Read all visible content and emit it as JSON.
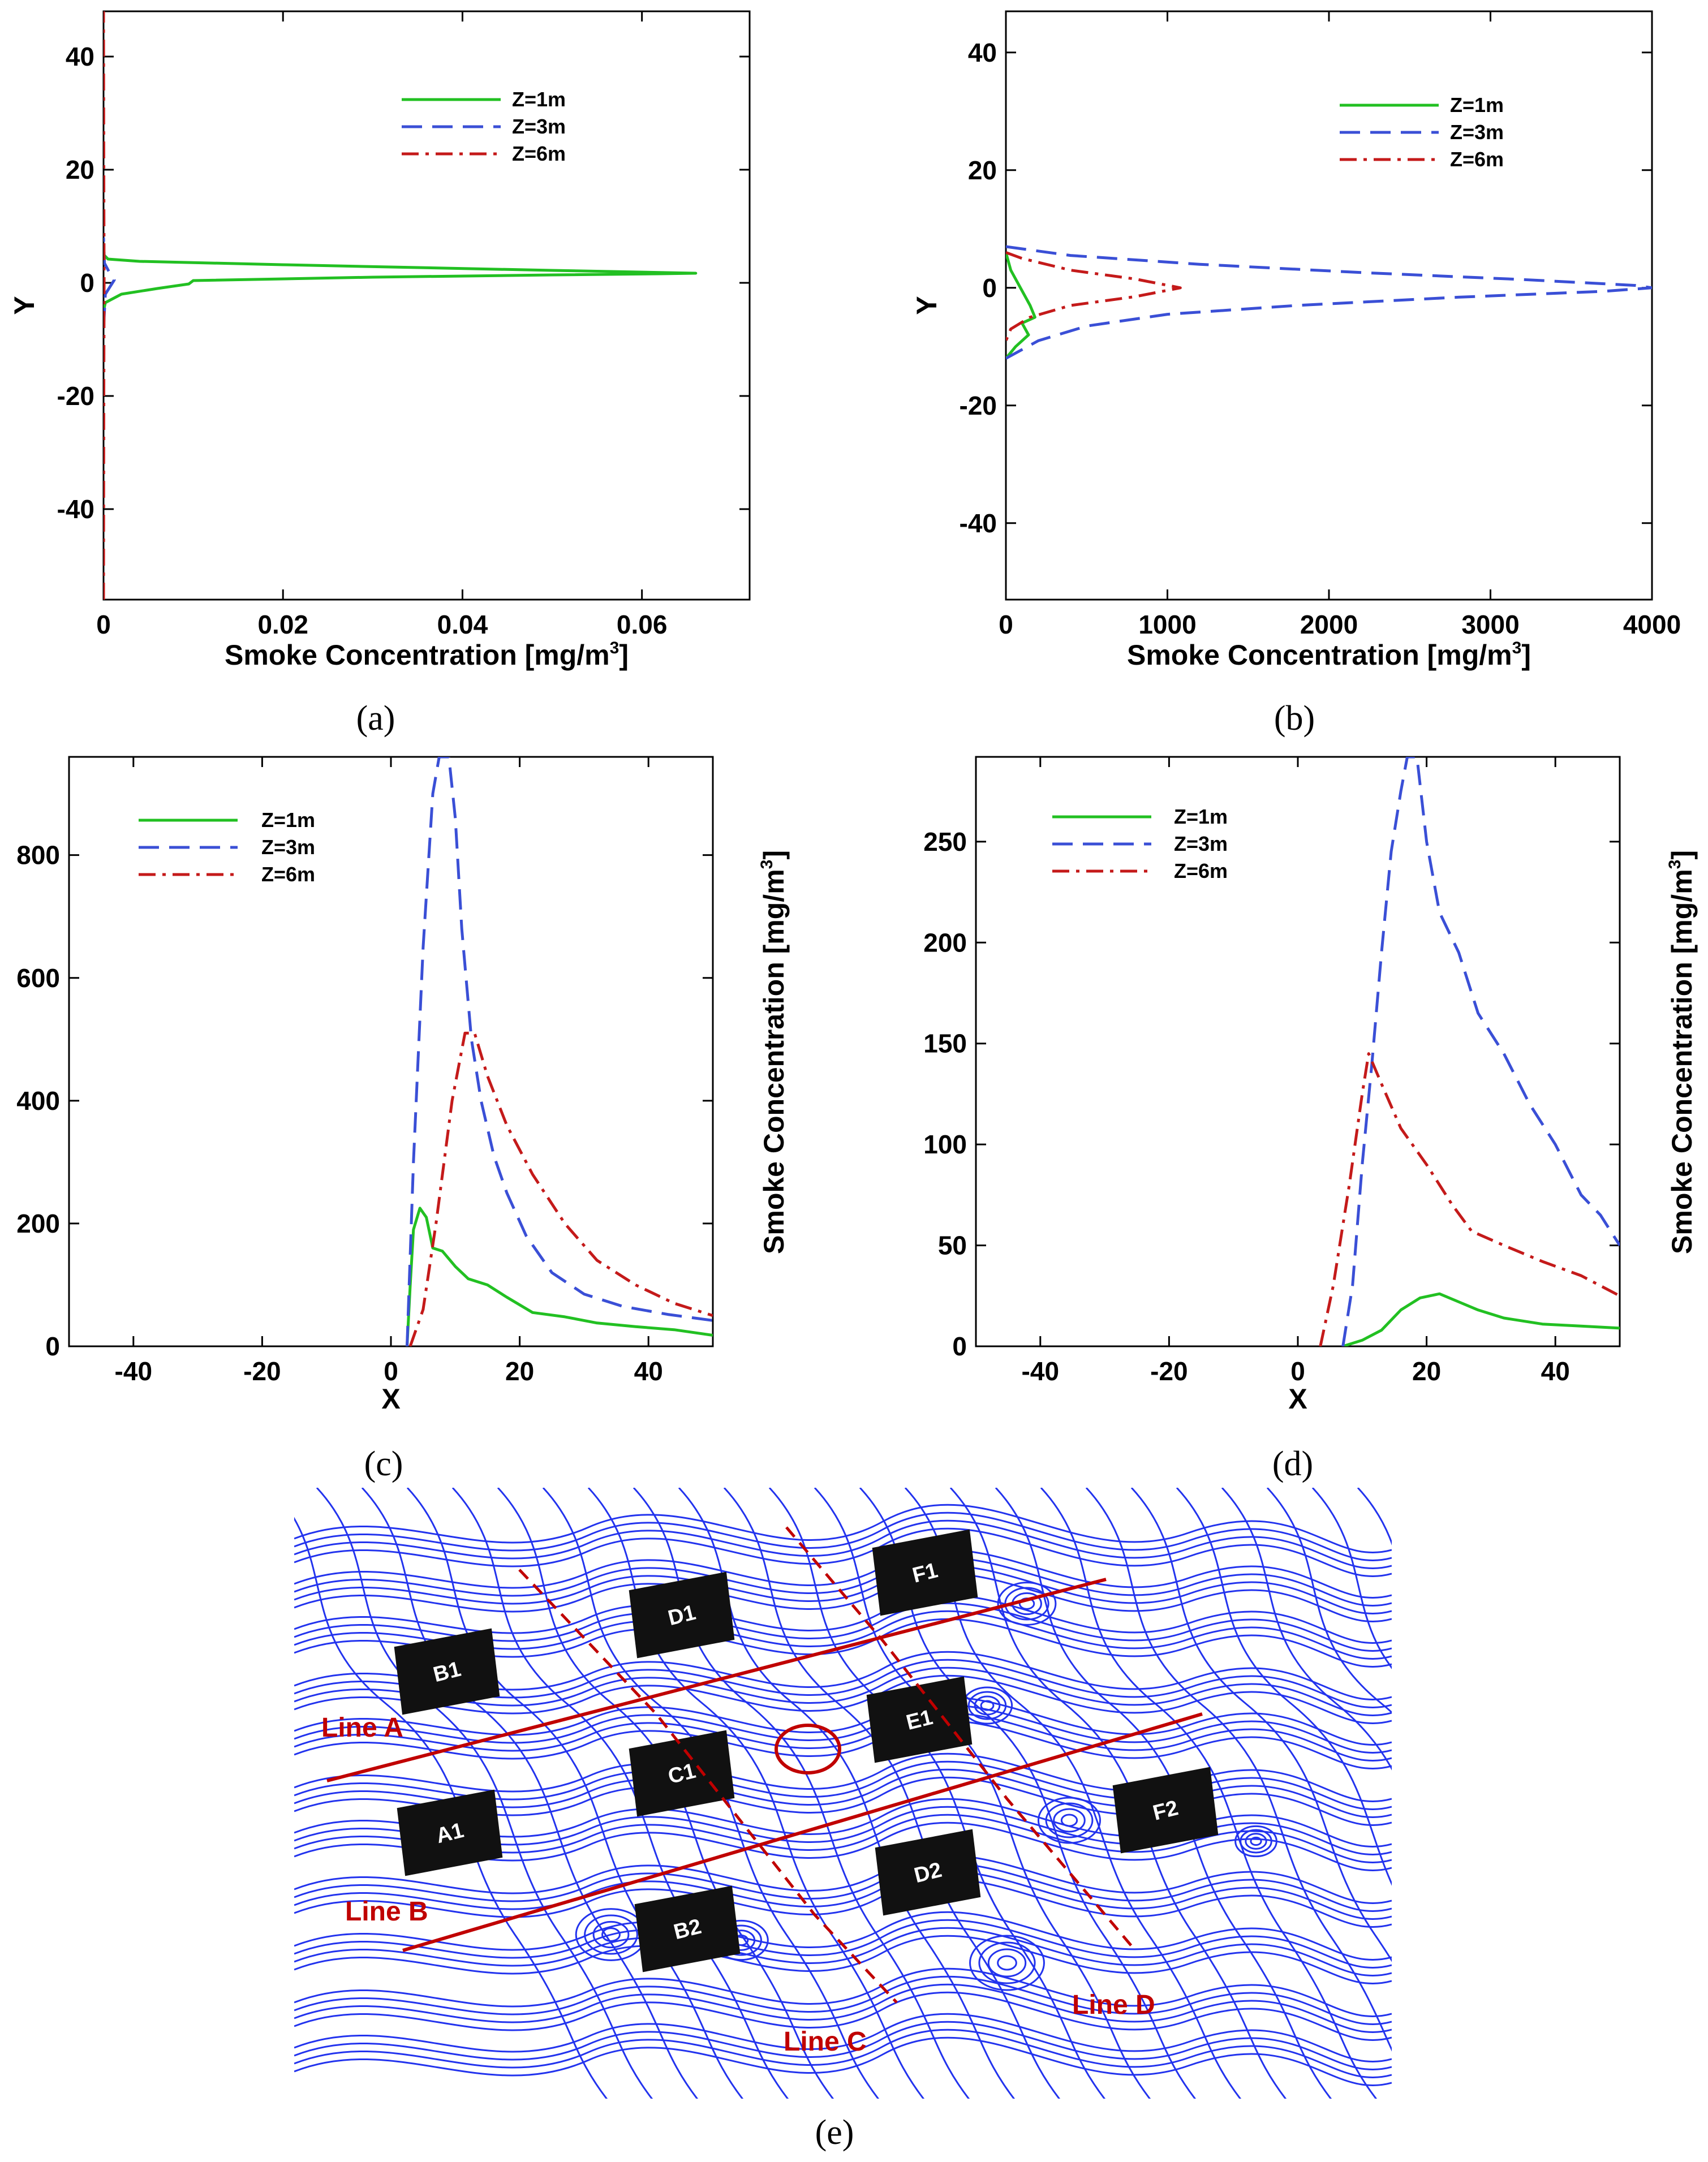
{
  "chart_data": [
    {
      "id": "a",
      "type": "line",
      "panel_label": "(a)",
      "xlabel": "Smoke Concentration [mg/m",
      "xlabel_sup": "3",
      "xlabel_end": "]",
      "ylabel": "Y",
      "xlim": [
        0,
        0.072
      ],
      "ylim": [
        -56,
        48
      ],
      "xticks": [
        0,
        0.02,
        0.04,
        0.06
      ],
      "xtick_labels": [
        "0",
        "0.02",
        "0.04",
        "0.06"
      ],
      "yticks": [
        -40,
        -20,
        0,
        20,
        40
      ],
      "ytick_labels": [
        "-40",
        "-20",
        "0",
        "20",
        "40"
      ],
      "legend": [
        "Z=1m",
        "Z=3m",
        "Z=6m"
      ],
      "series": [
        {
          "name": "Z=1m",
          "color": "#22c022",
          "dash": "solid",
          "points": [
            [
              0,
              -5
            ],
            [
              0.0002,
              -3.5
            ],
            [
              0.002,
              -2
            ],
            [
              0.006,
              -1
            ],
            [
              0.0095,
              -0.2
            ],
            [
              0.01,
              0.4
            ],
            [
              0.03,
              1.0
            ],
            [
              0.05,
              1.4
            ],
            [
              0.062,
              1.6
            ],
            [
              0.066,
              1.7
            ],
            [
              0.05,
              2.2
            ],
            [
              0.02,
              3.2
            ],
            [
              0.004,
              3.8
            ],
            [
              0.0005,
              4.2
            ],
            [
              0,
              5
            ]
          ]
        },
        {
          "name": "Z=3m",
          "color": "#3a4fd6",
          "dash": "dashed",
          "points": [
            [
              0,
              -8
            ],
            [
              0.0002,
              -2
            ],
            [
              0.0012,
              0.5
            ],
            [
              0.0006,
              2
            ],
            [
              0.0001,
              3.5
            ],
            [
              0,
              8
            ]
          ]
        },
        {
          "name": "Z=6m",
          "color": "#c41a1a",
          "dash": "dashdot",
          "points": [
            [
              0,
              -56
            ],
            [
              3e-05,
              -20
            ],
            [
              6e-05,
              0
            ],
            [
              3e-05,
              20
            ],
            [
              0,
              48
            ]
          ]
        }
      ]
    },
    {
      "id": "b",
      "type": "line",
      "panel_label": "(b)",
      "xlabel": "Smoke Concentration [mg/m",
      "xlabel_sup": "3",
      "xlabel_end": "]",
      "ylabel": "Y",
      "xlim": [
        0,
        4000
      ],
      "ylim": [
        -53,
        47
      ],
      "xticks": [
        0,
        1000,
        2000,
        3000,
        4000
      ],
      "xtick_labels": [
        "0",
        "1000",
        "2000",
        "3000",
        "4000"
      ],
      "yticks": [
        -40,
        -20,
        0,
        20,
        40
      ],
      "ytick_labels": [
        "-40",
        "-20",
        "0",
        "20",
        "40"
      ],
      "legend": [
        "Z=1m",
        "Z=3m",
        "Z=6m"
      ],
      "series": [
        {
          "name": "Z=1m",
          "color": "#22c022",
          "dash": "solid",
          "points": [
            [
              0,
              6
            ],
            [
              30,
              3
            ],
            [
              90,
              0
            ],
            [
              150,
              -3
            ],
            [
              180,
              -5
            ],
            [
              100,
              -6
            ],
            [
              140,
              -8
            ],
            [
              60,
              -10
            ],
            [
              0,
              -12
            ]
          ]
        },
        {
          "name": "Z=3m",
          "color": "#3a4fd6",
          "dash": "dashed",
          "points": [
            [
              0,
              7
            ],
            [
              400,
              5.5
            ],
            [
              1200,
              4
            ],
            [
              2200,
              2.6
            ],
            [
              3200,
              1.4
            ],
            [
              3900,
              0.4
            ],
            [
              4000,
              0
            ],
            [
              3700,
              -0.6
            ],
            [
              2800,
              -1.6
            ],
            [
              1800,
              -3
            ],
            [
              1000,
              -4.5
            ],
            [
              500,
              -6.5
            ],
            [
              200,
              -9
            ],
            [
              0,
              -12
            ]
          ]
        },
        {
          "name": "Z=6m",
          "color": "#c41a1a",
          "dash": "dashdot",
          "points": [
            [
              0,
              6
            ],
            [
              100,
              5
            ],
            [
              400,
              3
            ],
            [
              800,
              1.5
            ],
            [
              1080,
              0
            ],
            [
              800,
              -1.5
            ],
            [
              400,
              -3
            ],
            [
              150,
              -5
            ],
            [
              30,
              -7
            ],
            [
              0,
              -9
            ]
          ]
        }
      ]
    },
    {
      "id": "c",
      "type": "line",
      "panel_label": "(c)",
      "xlabel": "X",
      "ylabel": "Smoke Concentration [mg/m",
      "ylabel_sup": "3",
      "ylabel_end": "]",
      "xlim": [
        -50,
        50
      ],
      "ylim": [
        0,
        960
      ],
      "xticks": [
        -40,
        -20,
        0,
        20,
        40
      ],
      "xtick_labels": [
        "-40",
        "-20",
        "0",
        "20",
        "40"
      ],
      "yticks": [
        0,
        200,
        400,
        600,
        800
      ],
      "ytick_labels": [
        "0",
        "200",
        "400",
        "600",
        "800"
      ],
      "legend": [
        "Z=1m",
        "Z=3m",
        "Z=6m"
      ],
      "series": [
        {
          "name": "Z=1m",
          "color": "#22c022",
          "dash": "solid",
          "points": [
            [
              2.5,
              0
            ],
            [
              3,
              100
            ],
            [
              3.5,
              190
            ],
            [
              4.5,
              225
            ],
            [
              5.5,
              210
            ],
            [
              6.5,
              160
            ],
            [
              8,
              155
            ],
            [
              10,
              130
            ],
            [
              12,
              110
            ],
            [
              15,
              100
            ],
            [
              18,
              80
            ],
            [
              22,
              55
            ],
            [
              27,
              48
            ],
            [
              32,
              38
            ],
            [
              38,
              32
            ],
            [
              44,
              27
            ],
            [
              50,
              18
            ]
          ]
        },
        {
          "name": "Z=3m",
          "color": "#3a4fd6",
          "dash": "dashed",
          "points": [
            [
              2.5,
              0
            ],
            [
              3.5,
              300
            ],
            [
              5,
              650
            ],
            [
              6.5,
              900
            ],
            [
              7.5,
              960
            ],
            [
              9,
              960
            ],
            [
              10,
              860
            ],
            [
              11,
              680
            ],
            [
              12.5,
              500
            ],
            [
              14,
              400
            ],
            [
              16,
              310
            ],
            [
              18,
              250
            ],
            [
              21,
              180
            ],
            [
              25,
              120
            ],
            [
              30,
              85
            ],
            [
              36,
              65
            ],
            [
              43,
              52
            ],
            [
              50,
              42
            ]
          ]
        },
        {
          "name": "Z=6m",
          "color": "#c41a1a",
          "dash": "dashdot",
          "points": [
            [
              3,
              0
            ],
            [
              5,
              60
            ],
            [
              7,
              200
            ],
            [
              9.5,
              400
            ],
            [
              11.5,
              510
            ],
            [
              13,
              510
            ],
            [
              15,
              440
            ],
            [
              18,
              360
            ],
            [
              22,
              280
            ],
            [
              27,
              200
            ],
            [
              32,
              140
            ],
            [
              38,
              100
            ],
            [
              44,
              70
            ],
            [
              50,
              50
            ]
          ]
        }
      ]
    },
    {
      "id": "d",
      "type": "line",
      "panel_label": "(d)",
      "xlabel": "X",
      "ylabel": "Smoke Concentration [mg/m",
      "ylabel_sup": "3",
      "ylabel_end": "]",
      "xlim": [
        -50,
        50
      ],
      "ylim": [
        0,
        292
      ],
      "xticks": [
        -40,
        -20,
        0,
        20,
        40
      ],
      "xtick_labels": [
        "-40",
        "-20",
        "0",
        "20",
        "40"
      ],
      "yticks": [
        0,
        50,
        100,
        150,
        200,
        250
      ],
      "ytick_labels": [
        "0",
        "50",
        "100",
        "150",
        "200",
        "250"
      ],
      "legend": [
        "Z=1m",
        "Z=3m",
        "Z=6m"
      ],
      "series": [
        {
          "name": "Z=1m",
          "color": "#22c022",
          "dash": "solid",
          "points": [
            [
              7,
              0
            ],
            [
              10,
              3
            ],
            [
              13,
              8
            ],
            [
              16,
              18
            ],
            [
              19,
              24
            ],
            [
              22,
              26
            ],
            [
              25,
              22
            ],
            [
              28,
              18
            ],
            [
              32,
              14
            ],
            [
              38,
              11
            ],
            [
              44,
              10
            ],
            [
              50,
              9
            ]
          ]
        },
        {
          "name": "Z=3m",
          "color": "#3a4fd6",
          "dash": "dashed",
          "points": [
            [
              7,
              0
            ],
            [
              8.5,
              30
            ],
            [
              10,
              90
            ],
            [
              11.5,
              140
            ],
            [
              13,
              195
            ],
            [
              14.5,
              245
            ],
            [
              16,
              275
            ],
            [
              17,
              292
            ],
            [
              18.5,
              292
            ],
            [
              20,
              250
            ],
            [
              22,
              215
            ],
            [
              25,
              195
            ],
            [
              28,
              165
            ],
            [
              32,
              145
            ],
            [
              36,
              120
            ],
            [
              40,
              100
            ],
            [
              44,
              75
            ],
            [
              47,
              65
            ],
            [
              50,
              50
            ]
          ]
        },
        {
          "name": "Z=6m",
          "color": "#c41a1a",
          "dash": "dashdot",
          "points": [
            [
              3.5,
              0
            ],
            [
              5.5,
              30
            ],
            [
              8,
              80
            ],
            [
              10,
              125
            ],
            [
              11,
              145
            ],
            [
              13,
              130
            ],
            [
              16,
              108
            ],
            [
              20,
              90
            ],
            [
              24,
              70
            ],
            [
              27,
              57
            ],
            [
              32,
              50
            ],
            [
              38,
              42
            ],
            [
              44,
              35
            ],
            [
              50,
              25
            ]
          ]
        }
      ]
    }
  ],
  "figure_e": {
    "panel_label": "(e)",
    "buildings": [
      "F1",
      "D1",
      "B1",
      "E1",
      "C1",
      "A1",
      "F2",
      "D2",
      "B2"
    ],
    "line_labels": [
      "Line A",
      "Line B",
      "Line C",
      "Line D"
    ]
  }
}
